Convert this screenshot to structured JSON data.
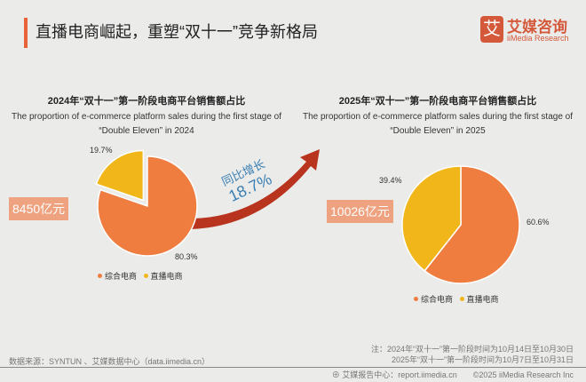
{
  "header": {
    "title": "直播电商崛起，重塑“双十一”竞争新格局",
    "logo_mark": "艾",
    "logo_cn": "艾媒咨询",
    "logo_en": "iiMedia Research"
  },
  "growth": {
    "label": "同比增长",
    "value": "18.7%"
  },
  "colors": {
    "accent": "#e8623a",
    "orange": "#ee7d3f",
    "yellow": "#f1b619",
    "arrow": "#b8341e"
  },
  "chart_data": [
    {
      "type": "pie",
      "title": "2024年“双十一”第一阶段电商平台销售额占比",
      "subtitle1": "The proportion of e-commerce platform sales during the first stage of",
      "subtitle2": "“Double Eleven” in 2024",
      "total_label": "8450亿元",
      "slices": [
        {
          "name": "综合电商",
          "value": 80.3,
          "label": "80.3%"
        },
        {
          "name": "直播电商",
          "value": 19.7,
          "label": "19.7%"
        }
      ],
      "legend": "bottom"
    },
    {
      "type": "pie",
      "title": "2025年“双十一”第一阶段电商平台销售额占比",
      "subtitle1": "The proportion of e-commerce platform sales during the first stage of",
      "subtitle2": "“Double Eleven” in 2025",
      "total_label": "10026亿元",
      "slices": [
        {
          "name": "综合电商",
          "value": 60.6,
          "label": "60.6%"
        },
        {
          "name": "直播电商",
          "value": 39.4,
          "label": "39.4%"
        }
      ],
      "legend": "bottom"
    }
  ],
  "footer": {
    "source": "数据来源：SYNTUN 、艾媒数据中心（data.iimedia.cn）",
    "note1": "注：2024年“双十一”第一阶段时间为10月14日至10月30日",
    "note2": "2025年“双十一”第一阶段时间为10月7日至10月31日",
    "report": "艾媒报告中心：report.iimedia.cn",
    "copyright": "©2025  iiMedia Research  Inc"
  }
}
